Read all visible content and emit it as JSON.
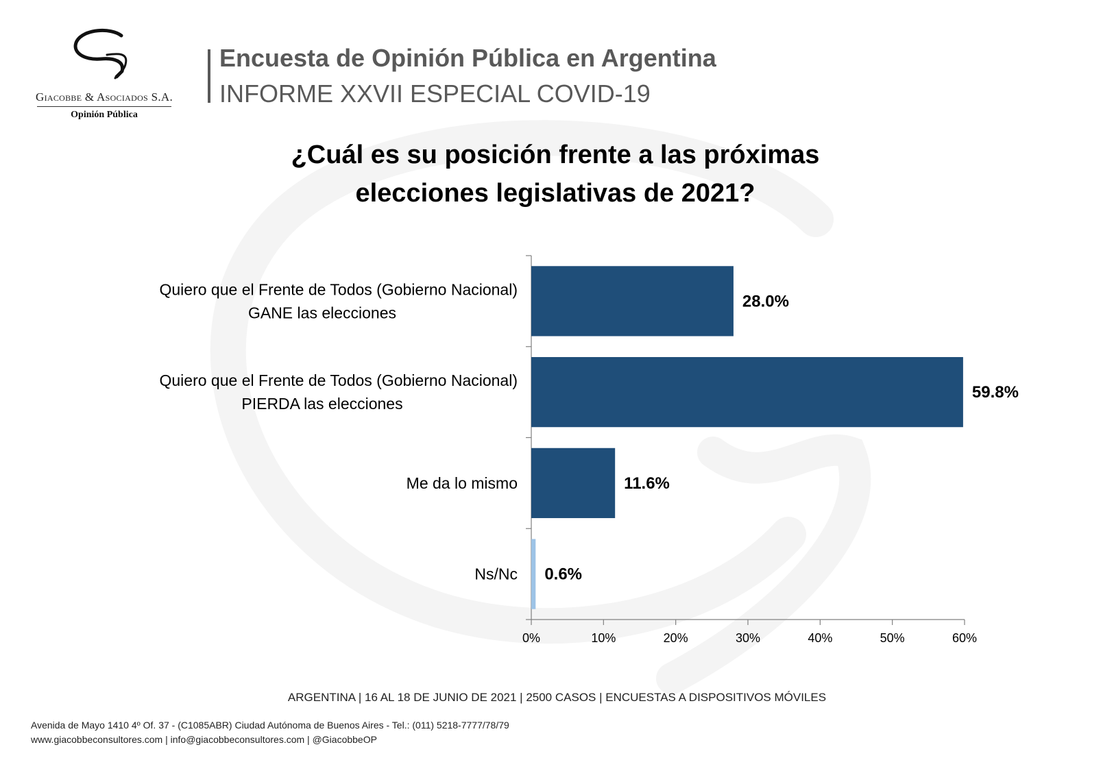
{
  "logo": {
    "firm": "Giacobbe & Asociados S.A.",
    "subtitle": "Opinión Pública"
  },
  "header": {
    "title": "Encuesta de Opinión Pública en Argentina",
    "subtitle": "INFORME XXVII ESPECIAL COVID-19"
  },
  "question": {
    "line1": "¿Cuál es su posición frente a las próximas",
    "line2": "elecciones legislativas de 2021?"
  },
  "chart_data": {
    "type": "bar",
    "orientation": "horizontal",
    "categories": [
      [
        "Quiero que el Frente de Todos (Gobierno Nacional)",
        "GANE las elecciones"
      ],
      [
        "Quiero que el Frente de Todos (Gobierno Nacional)",
        "PIERDA las elecciones"
      ],
      [
        "Me da lo mismo"
      ],
      [
        "Ns/Nc"
      ]
    ],
    "values": [
      28.0,
      59.8,
      11.6,
      0.6
    ],
    "value_labels": [
      "28.0%",
      "59.8%",
      "11.6%",
      "0.6%"
    ],
    "bar_colors": [
      "#1f4e79",
      "#1f4e79",
      "#1f4e79",
      "#9dc3e6"
    ],
    "xlim": [
      0,
      60
    ],
    "xticks": [
      0,
      10,
      20,
      30,
      40,
      50,
      60
    ],
    "xtick_labels": [
      "0%",
      "10%",
      "20%",
      "30%",
      "40%",
      "50%",
      "60%"
    ],
    "grid": false,
    "legend": "none"
  },
  "footer": {
    "note": "ARGENTINA | 16 AL 18 DE JUNIO DE 2021 | 2500 CASOS | ENCUESTAS A DISPOSITIVOS MÓVILES",
    "address": "Avenida de Mayo 1410 4º Of. 37 - (C1085ABR) Ciudad Autónoma de Buenos Aires - Tel.: (011) 5218-7777/78/79",
    "contact": "www.giacobbeconsultores.com | info@giacobbeconsultores.com | @GiacobbeOP"
  },
  "colors": {
    "bar_main": "#1f4e79",
    "bar_minor": "#9dc3e6",
    "header_text": "#595959"
  }
}
